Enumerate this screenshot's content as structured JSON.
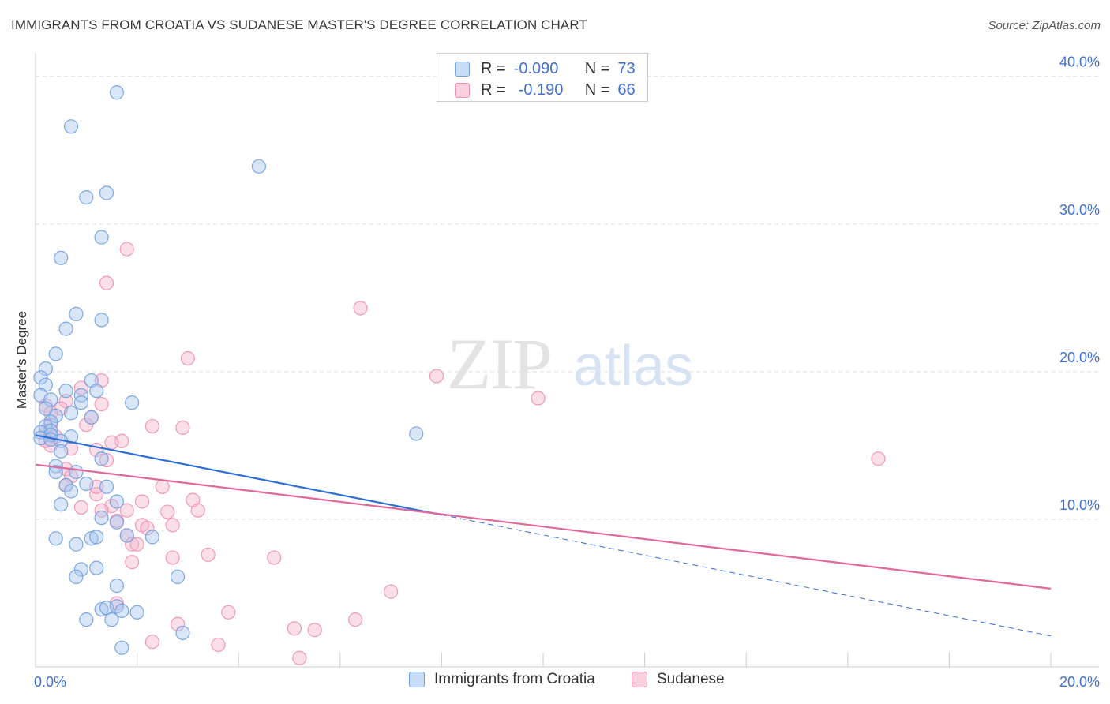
{
  "title": "IMMIGRANTS FROM CROATIA VS SUDANESE MASTER'S DEGREE CORRELATION CHART",
  "source": "Source: ZipAtlas.com",
  "watermark": {
    "zip": "ZIP",
    "atlas": "atlas"
  },
  "colors": {
    "blue_fill": "#a9c8f0",
    "blue_stroke": "#6f9fe0",
    "blue_line": "#2e6fd6",
    "pink_fill": "#f6b8cc",
    "pink_stroke": "#ee8fb0",
    "pink_line": "#e0689a",
    "tick_text": "#3f6fd1",
    "grid": "#dddddd"
  },
  "stats": [
    {
      "r_label": "R =",
      "r_value": "-0.090",
      "n_label": "N =",
      "n_value": "73"
    },
    {
      "r_label": "R =",
      "r_value": "-0.190",
      "n_label": "N =",
      "n_value": "66"
    }
  ],
  "legend": [
    "Immigrants from Croatia",
    "Sudanese"
  ],
  "chart_data": {
    "type": "scatter",
    "ylabel": "Master's Degree",
    "xlabel": "",
    "xlim": [
      0,
      20
    ],
    "ylim": [
      0,
      41
    ],
    "x_tick_labels": [
      "0.0%",
      "20.0%"
    ],
    "y_ticks": [
      10,
      20,
      30,
      40
    ],
    "y_tick_labels": [
      "10.0%",
      "20.0%",
      "30.0%",
      "40.0%"
    ],
    "grid": true,
    "series": [
      {
        "name": "Immigrants from Croatia",
        "color": "blue",
        "points": [
          [
            1.6,
            38.9
          ],
          [
            0.7,
            36.6
          ],
          [
            4.4,
            33.9
          ],
          [
            1.4,
            32.1
          ],
          [
            1.0,
            31.8
          ],
          [
            1.3,
            29.1
          ],
          [
            0.5,
            27.7
          ],
          [
            0.8,
            23.9
          ],
          [
            1.3,
            23.5
          ],
          [
            0.6,
            22.9
          ],
          [
            0.4,
            21.2
          ],
          [
            0.2,
            20.2
          ],
          [
            0.1,
            19.6
          ],
          [
            1.1,
            19.4
          ],
          [
            0.2,
            19.1
          ],
          [
            0.6,
            18.7
          ],
          [
            1.2,
            18.7
          ],
          [
            0.9,
            18.4
          ],
          [
            0.1,
            18.4
          ],
          [
            0.3,
            18.1
          ],
          [
            0.9,
            17.9
          ],
          [
            1.9,
            17.9
          ],
          [
            0.2,
            17.5
          ],
          [
            0.7,
            17.2
          ],
          [
            0.4,
            17.0
          ],
          [
            1.1,
            16.9
          ],
          [
            0.3,
            16.6
          ],
          [
            0.2,
            16.3
          ],
          [
            0.3,
            16.0
          ],
          [
            0.1,
            15.9
          ],
          [
            0.3,
            15.7
          ],
          [
            0.7,
            15.6
          ],
          [
            0.1,
            15.5
          ],
          [
            0.3,
            15.4
          ],
          [
            0.5,
            15.3
          ],
          [
            7.5,
            15.8
          ],
          [
            0.5,
            14.6
          ],
          [
            1.3,
            14.1
          ],
          [
            0.4,
            13.6
          ],
          [
            0.4,
            13.2
          ],
          [
            0.8,
            13.2
          ],
          [
            0.6,
            12.3
          ],
          [
            1.4,
            12.2
          ],
          [
            1.0,
            12.4
          ],
          [
            0.7,
            11.9
          ],
          [
            1.6,
            11.2
          ],
          [
            0.5,
            11.0
          ],
          [
            1.3,
            10.1
          ],
          [
            1.6,
            9.8
          ],
          [
            1.8,
            8.9
          ],
          [
            2.3,
            8.8
          ],
          [
            0.4,
            8.7
          ],
          [
            1.1,
            8.7
          ],
          [
            1.2,
            8.8
          ],
          [
            0.8,
            8.3
          ],
          [
            0.9,
            6.6
          ],
          [
            1.2,
            6.7
          ],
          [
            0.8,
            6.1
          ],
          [
            2.8,
            6.1
          ],
          [
            1.6,
            5.5
          ],
          [
            1.3,
            3.9
          ],
          [
            1.4,
            4.0
          ],
          [
            1.6,
            4.1
          ],
          [
            1.7,
            3.8
          ],
          [
            2.0,
            3.7
          ],
          [
            1.0,
            3.2
          ],
          [
            1.5,
            3.2
          ],
          [
            2.9,
            2.3
          ],
          [
            1.7,
            1.3
          ]
        ]
      },
      {
        "name": "Sudanese",
        "color": "pink",
        "points": [
          [
            1.8,
            28.3
          ],
          [
            1.4,
            26.0
          ],
          [
            6.4,
            24.3
          ],
          [
            3.0,
            20.9
          ],
          [
            7.9,
            19.7
          ],
          [
            1.3,
            19.4
          ],
          [
            0.9,
            18.9
          ],
          [
            9.9,
            18.2
          ],
          [
            0.6,
            18.0
          ],
          [
            0.2,
            17.7
          ],
          [
            1.3,
            17.8
          ],
          [
            0.5,
            17.5
          ],
          [
            0.3,
            17.2
          ],
          [
            1.1,
            16.9
          ],
          [
            0.3,
            16.4
          ],
          [
            2.3,
            16.3
          ],
          [
            2.9,
            16.2
          ],
          [
            1.0,
            16.4
          ],
          [
            0.2,
            16.0
          ],
          [
            0.4,
            15.6
          ],
          [
            0.2,
            15.3
          ],
          [
            1.7,
            15.3
          ],
          [
            1.5,
            15.2
          ],
          [
            0.3,
            15.0
          ],
          [
            0.7,
            14.8
          ],
          [
            1.2,
            14.7
          ],
          [
            16.6,
            14.1
          ],
          [
            1.4,
            14.0
          ],
          [
            0.6,
            13.4
          ],
          [
            0.7,
            12.9
          ],
          [
            0.6,
            12.3
          ],
          [
            2.5,
            12.2
          ],
          [
            1.2,
            11.7
          ],
          [
            1.2,
            12.2
          ],
          [
            2.1,
            11.2
          ],
          [
            3.1,
            11.3
          ],
          [
            1.5,
            10.9
          ],
          [
            0.9,
            10.8
          ],
          [
            1.8,
            10.6
          ],
          [
            1.3,
            10.6
          ],
          [
            2.6,
            10.5
          ],
          [
            3.2,
            10.6
          ],
          [
            1.6,
            9.9
          ],
          [
            2.1,
            9.6
          ],
          [
            2.2,
            9.4
          ],
          [
            2.7,
            9.6
          ],
          [
            1.8,
            8.9
          ],
          [
            1.9,
            8.3
          ],
          [
            2.0,
            8.3
          ],
          [
            3.4,
            7.6
          ],
          [
            4.7,
            7.4
          ],
          [
            2.7,
            7.4
          ],
          [
            1.9,
            7.1
          ],
          [
            7.0,
            5.1
          ],
          [
            1.6,
            4.3
          ],
          [
            3.8,
            3.7
          ],
          [
            6.3,
            3.2
          ],
          [
            2.8,
            2.9
          ],
          [
            5.1,
            2.6
          ],
          [
            5.5,
            2.5
          ],
          [
            2.3,
            1.7
          ],
          [
            3.6,
            1.5
          ],
          [
            5.2,
            0.6
          ]
        ]
      }
    ],
    "trend_lines": [
      {
        "series": "Immigrants from Croatia",
        "solid": [
          [
            0,
            15.7
          ],
          [
            8.0,
            10.3
          ]
        ],
        "dashed": [
          [
            8.0,
            10.3
          ],
          [
            20.0,
            2.1
          ]
        ]
      },
      {
        "series": "Sudanese",
        "solid": [
          [
            0,
            13.7
          ],
          [
            20.0,
            5.3
          ]
        ]
      }
    ]
  }
}
